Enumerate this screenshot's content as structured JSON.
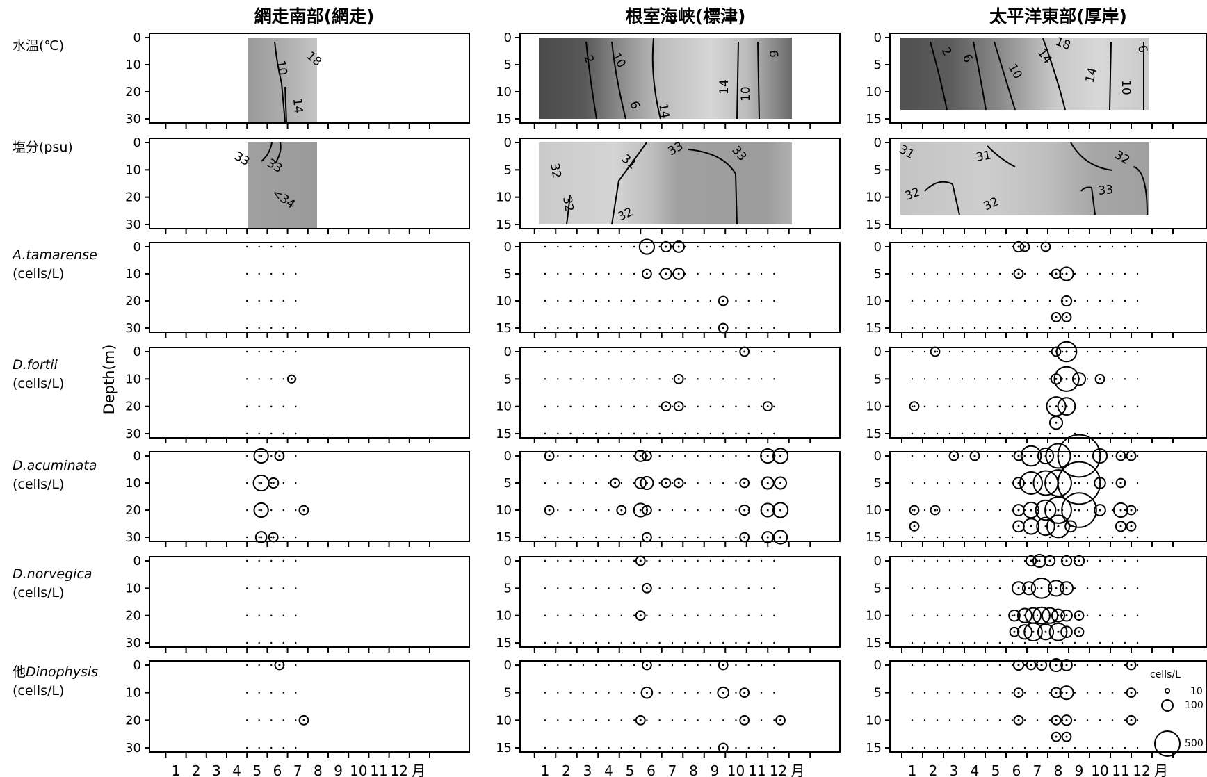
{
  "columns": [
    {
      "title": "網走南部(網走)",
      "depth_ticks": [
        0,
        10,
        20,
        30
      ],
      "depth_max": 30
    },
    {
      "title": "根室海峡(標津)",
      "depth_ticks": [
        0,
        5,
        10,
        15
      ],
      "depth_max": 15
    },
    {
      "title": "太平洋東部(厚岸)",
      "depth_ticks": [
        0,
        5,
        10,
        15
      ],
      "depth_max": 15
    }
  ],
  "rows": [
    {
      "name": "水温",
      "unit": "(℃)",
      "name_italic": false,
      "type": "contour"
    },
    {
      "name": "塩分",
      "unit": "(psu)",
      "name_italic": false,
      "type": "contour"
    },
    {
      "name": "A.tamarense",
      "unit": "(cells/L)",
      "name_italic": true,
      "type": "bubble"
    },
    {
      "name": "D.fortii",
      "unit": "(cells/L)",
      "name_italic": true,
      "type": "bubble"
    },
    {
      "name": "D.acuminata",
      "unit": "(cells/L)",
      "name_italic": true,
      "type": "bubble"
    },
    {
      "name": "D.norvegica",
      "unit": "(cells/L)",
      "name_italic": true,
      "type": "bubble"
    },
    {
      "name": "Dinophysis",
      "prefix": "他",
      "unit": "(cells/L)",
      "name_italic": true,
      "type": "bubble"
    }
  ],
  "y_axis_label": "Depth(m)",
  "months": [
    "1",
    "2",
    "3",
    "4",
    "5",
    "6",
    "7",
    "8",
    "9",
    "10",
    "11",
    "12"
  ],
  "month_suffix": "月",
  "legend": {
    "title": "cells/L",
    "sizes": [
      10,
      100,
      500
    ]
  },
  "chart_data": {
    "type": "bubble-grid",
    "x_unit": "month",
    "y_label": "Depth(m)",
    "contour_labels": {
      "abashiri_temp": [
        "10",
        "18",
        "14"
      ],
      "abashiri_sal": [
        "33",
        "33",
        "<34"
      ],
      "shibetsu_temp": [
        "2",
        "10",
        "6",
        "14",
        "14",
        "10",
        "6"
      ],
      "shibetsu_sal": [
        "32",
        "31",
        "33",
        "33",
        "32",
        "32"
      ],
      "akkeshi_temp": [
        "2",
        "6",
        "18",
        "14",
        "10",
        "14",
        "10",
        "6"
      ],
      "akkeshi_sal": [
        "31",
        "31",
        "32",
        "32",
        "32",
        "33"
      ]
    },
    "panels": {
      "abashiri": {
        "x_range": [
          4.5,
          7.4
        ],
        "A.tamarense": [],
        "D.fortii": [
          {
            "month": 6.7,
            "depth": 10,
            "cells": 30
          }
        ],
        "D.acuminata": [
          {
            "month": 5.2,
            "depth": 0,
            "cells": 100
          },
          {
            "month": 6.1,
            "depth": 0,
            "cells": 40
          },
          {
            "month": 5.2,
            "depth": 10,
            "cells": 120
          },
          {
            "month": 5.8,
            "depth": 10,
            "cells": 50
          },
          {
            "month": 5.2,
            "depth": 20,
            "cells": 100
          },
          {
            "month": 7.3,
            "depth": 20,
            "cells": 40
          },
          {
            "month": 5.2,
            "depth": 30,
            "cells": 60
          },
          {
            "month": 5.8,
            "depth": 30,
            "cells": 40
          }
        ],
        "D.norvegica": [],
        "他Dinophysis": [
          {
            "month": 6.1,
            "depth": 0,
            "cells": 40
          },
          {
            "month": 7.3,
            "depth": 20,
            "cells": 40
          }
        ]
      },
      "shibetsu": {
        "x_range": [
          1.0,
          11.9
        ],
        "A.tamarense": [
          {
            "month": 5.8,
            "depth": 0,
            "cells": 110
          },
          {
            "month": 6.7,
            "depth": 0,
            "cells": 50
          },
          {
            "month": 7.3,
            "depth": 0,
            "cells": 60
          },
          {
            "month": 5.8,
            "depth": 5,
            "cells": 40
          },
          {
            "month": 6.7,
            "depth": 5,
            "cells": 60
          },
          {
            "month": 7.3,
            "depth": 5,
            "cells": 60
          },
          {
            "month": 9.4,
            "depth": 10,
            "cells": 40
          },
          {
            "month": 9.4,
            "depth": 15,
            "cells": 40
          }
        ],
        "D.fortii": [
          {
            "month": 10.4,
            "depth": 0,
            "cells": 40
          },
          {
            "month": 7.3,
            "depth": 5,
            "cells": 40
          },
          {
            "month": 6.7,
            "depth": 10,
            "cells": 40
          },
          {
            "month": 7.3,
            "depth": 10,
            "cells": 40
          },
          {
            "month": 11.5,
            "depth": 10,
            "cells": 40
          }
        ],
        "D.acuminata": [
          {
            "month": 1.2,
            "depth": 0,
            "cells": 40
          },
          {
            "month": 5.5,
            "depth": 0,
            "cells": 60
          },
          {
            "month": 5.8,
            "depth": 0,
            "cells": 40
          },
          {
            "month": 11.5,
            "depth": 0,
            "cells": 100
          },
          {
            "month": 12.1,
            "depth": 0,
            "cells": 110
          },
          {
            "month": 4.3,
            "depth": 5,
            "cells": 40
          },
          {
            "month": 5.5,
            "depth": 5,
            "cells": 60
          },
          {
            "month": 5.8,
            "depth": 5,
            "cells": 80
          },
          {
            "month": 6.7,
            "depth": 5,
            "cells": 40
          },
          {
            "month": 7.3,
            "depth": 5,
            "cells": 40
          },
          {
            "month": 10.4,
            "depth": 5,
            "cells": 40
          },
          {
            "month": 11.5,
            "depth": 5,
            "cells": 70
          },
          {
            "month": 12.1,
            "depth": 5,
            "cells": 70
          },
          {
            "month": 1.2,
            "depth": 10,
            "cells": 40
          },
          {
            "month": 4.6,
            "depth": 10,
            "cells": 40
          },
          {
            "month": 5.5,
            "depth": 10,
            "cells": 90
          },
          {
            "month": 5.8,
            "depth": 10,
            "cells": 40
          },
          {
            "month": 10.4,
            "depth": 10,
            "cells": 50
          },
          {
            "month": 11.5,
            "depth": 10,
            "cells": 90
          },
          {
            "month": 12.1,
            "depth": 10,
            "cells": 110
          },
          {
            "month": 5.8,
            "depth": 15,
            "cells": 40
          },
          {
            "month": 10.4,
            "depth": 15,
            "cells": 40
          },
          {
            "month": 11.5,
            "depth": 15,
            "cells": 60
          },
          {
            "month": 12.1,
            "depth": 15,
            "cells": 90
          }
        ],
        "D.norvegica": [
          {
            "month": 5.5,
            "depth": 0,
            "cells": 40
          },
          {
            "month": 5.8,
            "depth": 5,
            "cells": 40
          },
          {
            "month": 5.5,
            "depth": 10,
            "cells": 40
          }
        ],
        "他Dinophysis": [
          {
            "month": 5.8,
            "depth": 0,
            "cells": 40
          },
          {
            "month": 9.4,
            "depth": 0,
            "cells": 40
          },
          {
            "month": 5.8,
            "depth": 5,
            "cells": 60
          },
          {
            "month": 9.4,
            "depth": 5,
            "cells": 60
          },
          {
            "month": 10.4,
            "depth": 5,
            "cells": 40
          },
          {
            "month": 5.5,
            "depth": 10,
            "cells": 40
          },
          {
            "month": 10.4,
            "depth": 10,
            "cells": 40
          },
          {
            "month": 12.1,
            "depth": 10,
            "cells": 40
          },
          {
            "month": 9.4,
            "depth": 15,
            "cells": 40
          }
        ]
      },
      "akkeshi": {
        "x_range": [
          1.0,
          11.9
        ],
        "A.tamarense": [
          {
            "month": 6.1,
            "depth": 0,
            "cells": 50
          },
          {
            "month": 6.4,
            "depth": 0,
            "cells": 40
          },
          {
            "month": 7.4,
            "depth": 0,
            "cells": 40
          },
          {
            "month": 6.1,
            "depth": 5,
            "cells": 40
          },
          {
            "month": 7.9,
            "depth": 5,
            "cells": 40
          },
          {
            "month": 8.4,
            "depth": 5,
            "cells": 90
          },
          {
            "month": 8.4,
            "depth": 10,
            "cells": 50
          },
          {
            "month": 7.9,
            "depth": 13,
            "cells": 40
          },
          {
            "month": 8.4,
            "depth": 13,
            "cells": 40
          }
        ],
        "D.fortii": [
          {
            "month": 2.1,
            "depth": 0,
            "cells": 40
          },
          {
            "month": 7.9,
            "depth": 0,
            "cells": 40
          },
          {
            "month": 8.4,
            "depth": 0,
            "cells": 200
          },
          {
            "month": 7.9,
            "depth": 5,
            "cells": 50
          },
          {
            "month": 8.4,
            "depth": 5,
            "cells": 300
          },
          {
            "month": 9.0,
            "depth": 5,
            "cells": 80
          },
          {
            "month": 10.0,
            "depth": 5,
            "cells": 40
          },
          {
            "month": 1.1,
            "depth": 10,
            "cells": 40
          },
          {
            "month": 7.9,
            "depth": 10,
            "cells": 180
          },
          {
            "month": 8.4,
            "depth": 10,
            "cells": 150
          },
          {
            "month": 7.9,
            "depth": 13,
            "cells": 80
          }
        ],
        "D.acuminata": [
          {
            "month": 3.0,
            "depth": 0,
            "cells": 40
          },
          {
            "month": 4.0,
            "depth": 0,
            "cells": 40
          },
          {
            "month": 6.1,
            "depth": 0,
            "cells": 40
          },
          {
            "month": 6.7,
            "depth": 0,
            "cells": 200
          },
          {
            "month": 7.4,
            "depth": 0,
            "cells": 120
          },
          {
            "month": 8.0,
            "depth": 0,
            "cells": 300
          },
          {
            "month": 9.0,
            "depth": 0,
            "cells": 900
          },
          {
            "month": 10.0,
            "depth": 0,
            "cells": 100
          },
          {
            "month": 11.0,
            "depth": 0,
            "cells": 40
          },
          {
            "month": 11.5,
            "depth": 0,
            "cells": 40
          },
          {
            "month": 6.1,
            "depth": 5,
            "cells": 60
          },
          {
            "month": 6.7,
            "depth": 5,
            "cells": 250
          },
          {
            "month": 7.4,
            "depth": 5,
            "cells": 300
          },
          {
            "month": 8.0,
            "depth": 5,
            "cells": 350
          },
          {
            "month": 9.0,
            "depth": 5,
            "cells": 900
          },
          {
            "month": 10.0,
            "depth": 5,
            "cells": 60
          },
          {
            "month": 11.0,
            "depth": 5,
            "cells": 40
          },
          {
            "month": 1.1,
            "depth": 10,
            "cells": 40
          },
          {
            "month": 2.1,
            "depth": 10,
            "cells": 40
          },
          {
            "month": 6.1,
            "depth": 10,
            "cells": 60
          },
          {
            "month": 6.7,
            "depth": 10,
            "cells": 120
          },
          {
            "month": 7.4,
            "depth": 10,
            "cells": 200
          },
          {
            "month": 8.0,
            "depth": 10,
            "cells": 350
          },
          {
            "month": 9.0,
            "depth": 10,
            "cells": 600
          },
          {
            "month": 10.0,
            "depth": 10,
            "cells": 60
          },
          {
            "month": 11.0,
            "depth": 10,
            "cells": 100
          },
          {
            "month": 11.5,
            "depth": 10,
            "cells": 40
          },
          {
            "month": 1.1,
            "depth": 13,
            "cells": 40
          },
          {
            "month": 6.1,
            "depth": 13,
            "cells": 60
          },
          {
            "month": 6.7,
            "depth": 13,
            "cells": 120
          },
          {
            "month": 7.4,
            "depth": 13,
            "cells": 160
          },
          {
            "month": 8.0,
            "depth": 13,
            "cells": 250
          },
          {
            "month": 8.6,
            "depth": 13,
            "cells": 60
          },
          {
            "month": 11.0,
            "depth": 13,
            "cells": 50
          },
          {
            "month": 11.5,
            "depth": 13,
            "cells": 40
          }
        ],
        "D.norvegica": [
          {
            "month": 6.7,
            "depth": 0,
            "cells": 50
          },
          {
            "month": 7.1,
            "depth": 0,
            "cells": 80
          },
          {
            "month": 7.6,
            "depth": 0,
            "cells": 50
          },
          {
            "month": 8.4,
            "depth": 0,
            "cells": 50
          },
          {
            "month": 9.0,
            "depth": 0,
            "cells": 50
          },
          {
            "month": 6.1,
            "depth": 5,
            "cells": 80
          },
          {
            "month": 6.6,
            "depth": 5,
            "cells": 80
          },
          {
            "month": 7.2,
            "depth": 5,
            "cells": 200
          },
          {
            "month": 7.9,
            "depth": 5,
            "cells": 120
          },
          {
            "month": 8.4,
            "depth": 5,
            "cells": 80
          },
          {
            "month": 5.9,
            "depth": 10,
            "cells": 60
          },
          {
            "month": 6.4,
            "depth": 10,
            "cells": 100
          },
          {
            "month": 6.8,
            "depth": 10,
            "cells": 120
          },
          {
            "month": 7.2,
            "depth": 10,
            "cells": 140
          },
          {
            "month": 7.6,
            "depth": 10,
            "cells": 120
          },
          {
            "month": 8.0,
            "depth": 10,
            "cells": 80
          },
          {
            "month": 8.4,
            "depth": 10,
            "cells": 60
          },
          {
            "month": 9.0,
            "depth": 10,
            "cells": 40
          },
          {
            "month": 5.9,
            "depth": 13,
            "cells": 40
          },
          {
            "month": 6.4,
            "depth": 13,
            "cells": 100
          },
          {
            "month": 6.8,
            "depth": 13,
            "cells": 160
          },
          {
            "month": 7.4,
            "depth": 13,
            "cells": 120
          },
          {
            "month": 8.0,
            "depth": 13,
            "cells": 150
          },
          {
            "month": 8.4,
            "depth": 13,
            "cells": 60
          },
          {
            "month": 9.0,
            "depth": 13,
            "cells": 40
          }
        ],
        "他Dinophysis": [
          {
            "month": 6.1,
            "depth": 0,
            "cells": 50
          },
          {
            "month": 6.7,
            "depth": 0,
            "cells": 40
          },
          {
            "month": 7.2,
            "depth": 0,
            "cells": 50
          },
          {
            "month": 7.9,
            "depth": 0,
            "cells": 80
          },
          {
            "month": 8.4,
            "depth": 0,
            "cells": 60
          },
          {
            "month": 11.5,
            "depth": 0,
            "cells": 40
          },
          {
            "month": 6.1,
            "depth": 5,
            "cells": 40
          },
          {
            "month": 7.9,
            "depth": 5,
            "cells": 50
          },
          {
            "month": 8.4,
            "depth": 5,
            "cells": 90
          },
          {
            "month": 11.5,
            "depth": 5,
            "cells": 40
          },
          {
            "month": 6.1,
            "depth": 10,
            "cells": 40
          },
          {
            "month": 7.9,
            "depth": 10,
            "cells": 40
          },
          {
            "month": 8.4,
            "depth": 10,
            "cells": 50
          },
          {
            "month": 11.5,
            "depth": 10,
            "cells": 40
          },
          {
            "month": 7.9,
            "depth": 13,
            "cells": 40
          },
          {
            "month": 8.4,
            "depth": 13,
            "cells": 40
          }
        ]
      }
    }
  }
}
